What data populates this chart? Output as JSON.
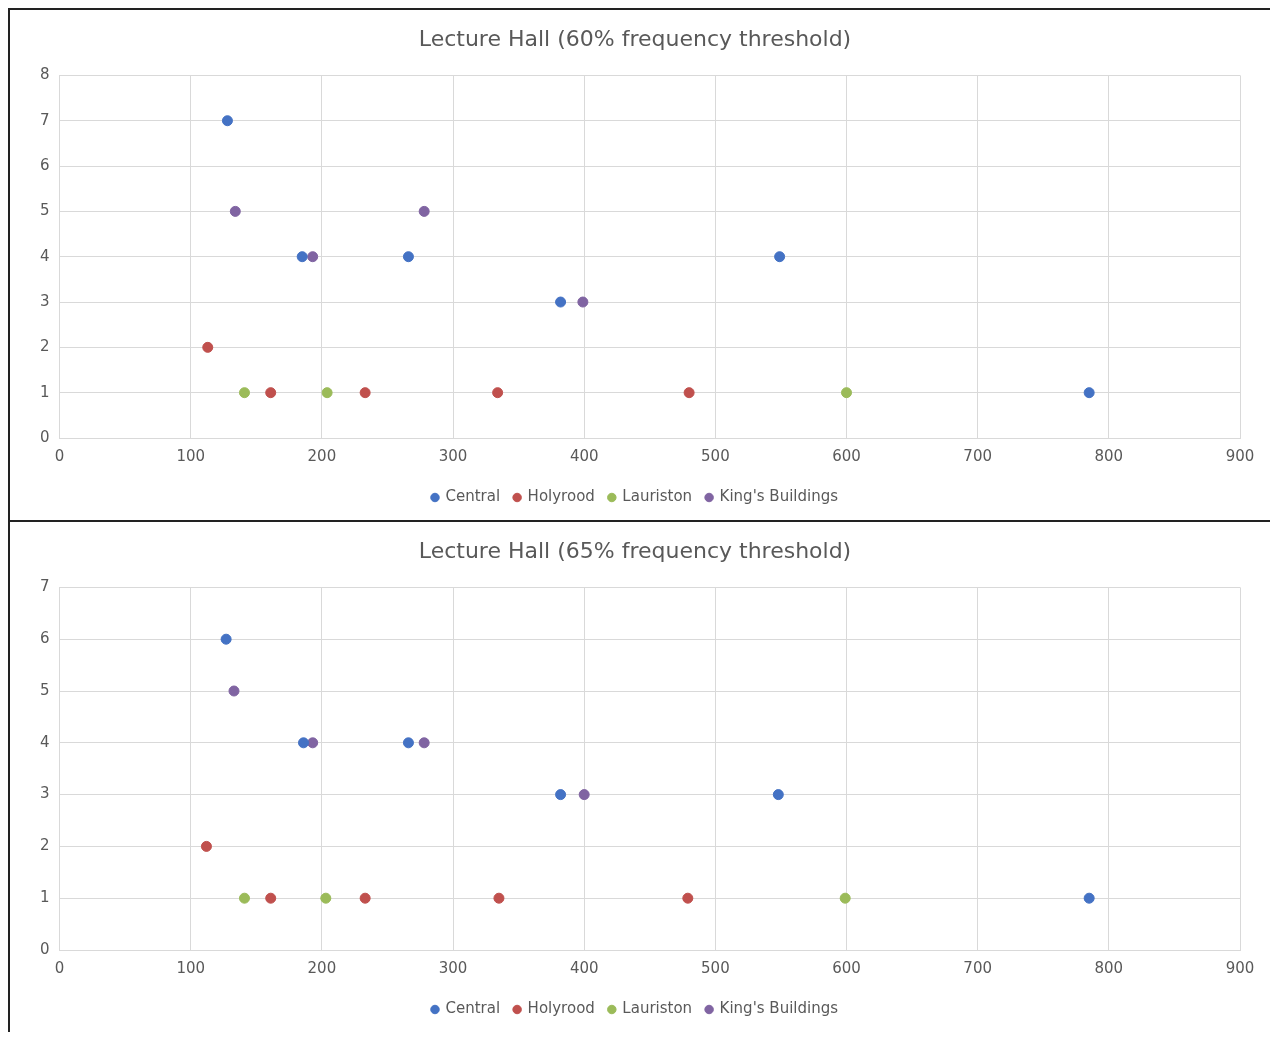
{
  "chart_data": [
    {
      "type": "scatter",
      "title": "Lecture Hall (60% frequency threshold)",
      "xlim": [
        0,
        900
      ],
      "xticks": [
        0,
        100,
        200,
        300,
        400,
        500,
        600,
        700,
        800,
        900
      ],
      "ylim": [
        0,
        8
      ],
      "yticks": [
        0,
        1,
        2,
        3,
        4,
        5,
        6,
        7,
        8
      ],
      "grid": true,
      "legend": "bottom",
      "marker": "circle",
      "series": [
        {
          "name": "Central",
          "color": "#4472c4",
          "x": [
            128,
            185,
            266,
            549,
            382,
            785
          ],
          "values": [
            7,
            4,
            4,
            4,
            3,
            1
          ]
        },
        {
          "name": "Holyrood",
          "color": "#c0504d",
          "x": [
            113,
            161,
            233,
            334,
            480
          ],
          "values": [
            2,
            1,
            1,
            1,
            1
          ]
        },
        {
          "name": "Lauriston",
          "color": "#9bbb59",
          "x": [
            141,
            204,
            600
          ],
          "values": [
            1,
            1,
            1
          ]
        },
        {
          "name": "King's Buildings",
          "color": "#8064a2",
          "x": [
            134,
            278,
            193,
            399
          ],
          "values": [
            5,
            5,
            4,
            3
          ]
        }
      ]
    },
    {
      "type": "scatter",
      "title": "Lecture Hall (65% frequency threshold)",
      "xlim": [
        0,
        900
      ],
      "xticks": [
        0,
        100,
        200,
        300,
        400,
        500,
        600,
        700,
        800,
        900
      ],
      "ylim": [
        0,
        7
      ],
      "yticks": [
        0,
        1,
        2,
        3,
        4,
        5,
        6,
        7
      ],
      "grid": true,
      "legend": "bottom",
      "marker": "circle",
      "series": [
        {
          "name": "Central",
          "color": "#4472c4",
          "x": [
            127,
            186,
            266,
            382,
            548,
            785
          ],
          "values": [
            6,
            4,
            4,
            3,
            3,
            1
          ]
        },
        {
          "name": "Holyrood",
          "color": "#c0504d",
          "x": [
            112,
            161,
            233,
            335,
            479
          ],
          "values": [
            2,
            1,
            1,
            1,
            1
          ]
        },
        {
          "name": "Lauriston",
          "color": "#9bbb59",
          "x": [
            141,
            203,
            599
          ],
          "values": [
            1,
            1,
            1
          ]
        },
        {
          "name": "King's Buildings",
          "color": "#8064a2",
          "x": [
            133,
            193,
            278,
            400
          ],
          "values": [
            5,
            4,
            4,
            3
          ]
        }
      ]
    }
  ]
}
